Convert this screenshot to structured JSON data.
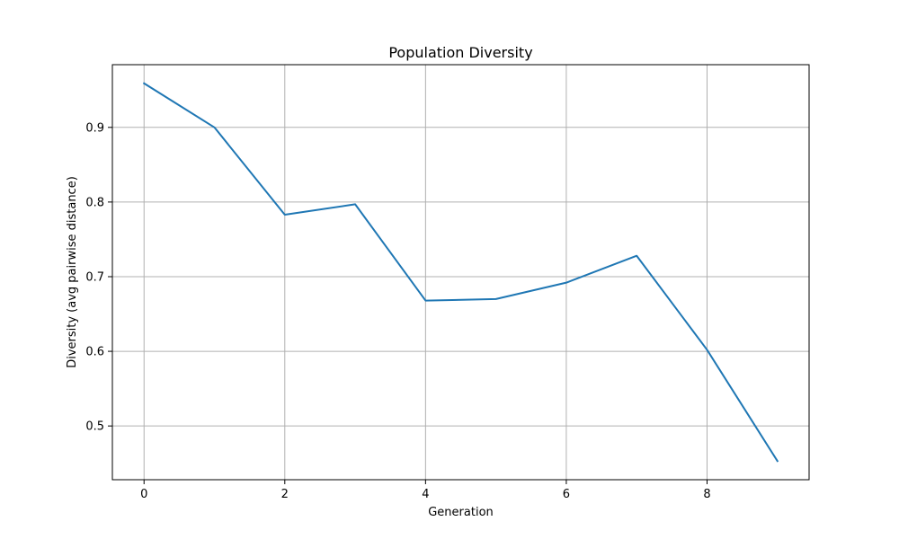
{
  "chart_data": {
    "type": "line",
    "title": "Population Diversity",
    "xlabel": "Generation",
    "ylabel": "Diversity (avg pairwise distance)",
    "x": [
      0,
      1,
      2,
      3,
      4,
      5,
      6,
      7,
      8,
      9
    ],
    "series": [
      {
        "values": [
          0.959,
          0.9,
          0.783,
          0.797,
          0.668,
          0.67,
          0.692,
          0.728,
          0.602,
          0.453
        ],
        "color": "#1f77b4"
      }
    ],
    "xlim": [
      -0.45,
      9.45
    ],
    "ylim": [
      0.428,
      0.984
    ],
    "xticks": [
      0,
      2,
      4,
      6,
      8
    ],
    "yticks": [
      0.5,
      0.6,
      0.7,
      0.8,
      0.9
    ],
    "grid": true,
    "grid_color": "#b0b0b0"
  }
}
